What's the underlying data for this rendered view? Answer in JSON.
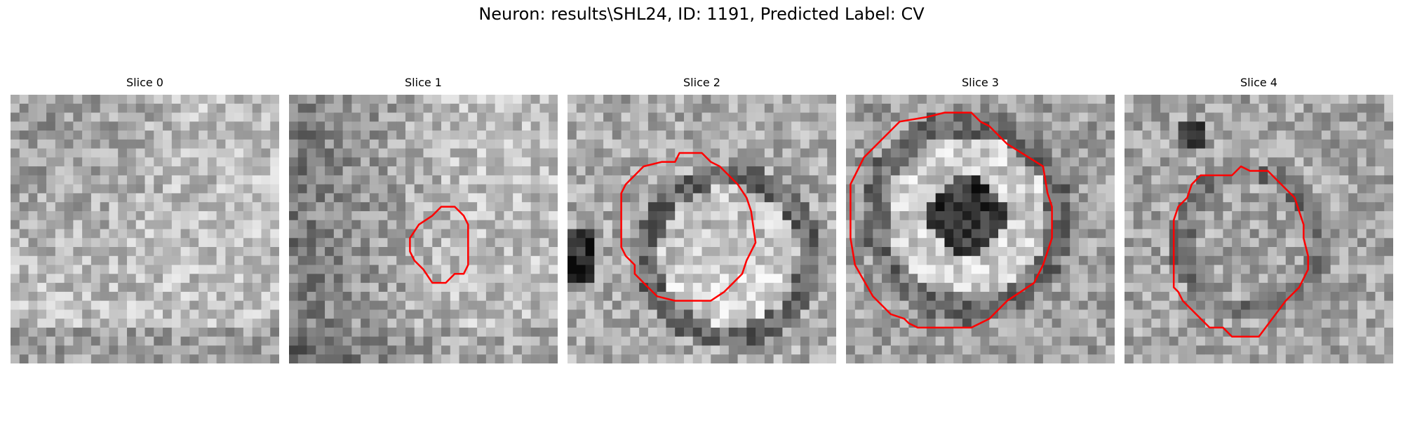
{
  "figure": {
    "title": "Neuron: results\\SHL24, ID: 1191, Predicted Label: CV"
  },
  "panels": [
    {
      "title": "Slice 0",
      "image": "grayscale-noise-texture",
      "contour": null
    },
    {
      "title": "Slice 1",
      "image": "grayscale-noise-texture",
      "contour": "small-red-polygon"
    },
    {
      "title": "Slice 2",
      "image": "grayscale-noise-texture",
      "contour": "large-red-polygon"
    },
    {
      "title": "Slice 3",
      "image": "grayscale-noise-texture",
      "contour": "large-red-polygon"
    },
    {
      "title": "Slice 4",
      "image": "grayscale-noise-texture",
      "contour": "medium-red-polygon"
    }
  ],
  "colors": {
    "contour": "#ff0000",
    "background": "#ffffff"
  }
}
